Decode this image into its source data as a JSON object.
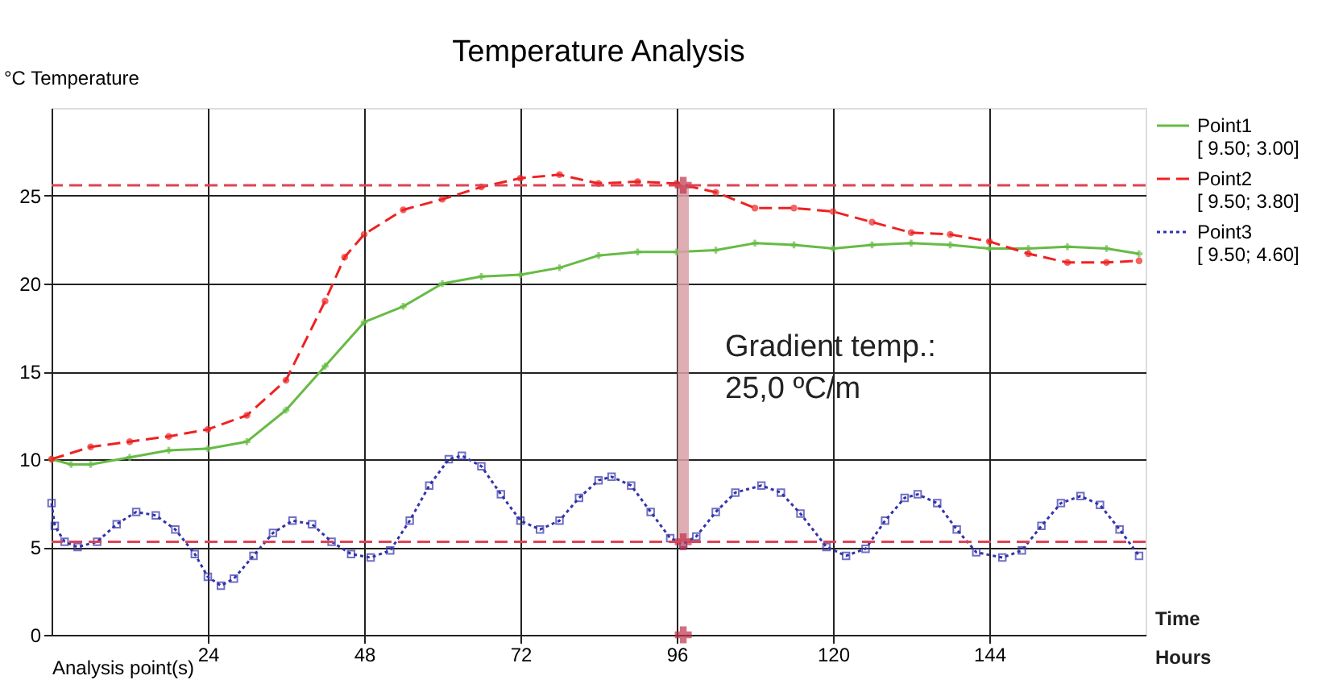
{
  "chart_data": {
    "type": "line",
    "title": "Temperature Analysis",
    "ylabel": "°C  Temperature",
    "xlabel": "Analysis point(s)",
    "xlim": [
      0,
      168
    ],
    "xticks": [
      24,
      48,
      72,
      96,
      120,
      144
    ],
    "ylim": [
      0,
      30
    ],
    "yticks": [
      0,
      5,
      10,
      15,
      20,
      25
    ],
    "grid": true,
    "legend": "top right",
    "series": [
      {
        "name": "Point1\n[ 9.50; 3.00]",
        "color": "#66bb44",
        "marker": "cross",
        "line_style": "solid",
        "x": [
          0,
          3,
          6,
          12,
          18,
          24,
          30,
          36,
          42,
          48,
          54,
          60,
          66,
          72,
          78,
          84,
          90,
          96,
          102,
          108,
          114,
          120,
          126,
          132,
          138,
          144,
          150,
          156,
          162,
          167
        ],
        "values": [
          10,
          9.7,
          9.7,
          10.1,
          10.5,
          10.6,
          11,
          12.8,
          15.3,
          17.8,
          18.7,
          20,
          20.4,
          20.5,
          20.9,
          21.6,
          21.8,
          21.8,
          21.9,
          22.3,
          22.2,
          22.0,
          22.2,
          22.3,
          22.2,
          22.0,
          22.0,
          22.1,
          22.0,
          21.7
        ]
      },
      {
        "name": "Point2\n[ 9.50; 3.80]",
        "color": "#ee2222",
        "marker": "circle",
        "line_style": "dashed",
        "x": [
          0,
          6,
          12,
          18,
          24,
          30,
          36,
          42,
          45,
          48,
          54,
          60,
          66,
          72,
          78,
          84,
          90,
          96,
          102,
          108,
          114,
          120,
          126,
          132,
          138,
          144,
          150,
          156,
          162,
          167
        ],
        "values": [
          10,
          10.7,
          11,
          11.3,
          11.7,
          12.5,
          14.5,
          19,
          21.5,
          22.8,
          24.2,
          24.8,
          25.5,
          26,
          26.2,
          25.7,
          25.8,
          25.7,
          25.2,
          24.3,
          24.3,
          24.1,
          23.5,
          22.9,
          22.8,
          22.4,
          21.7,
          21.2,
          21.2,
          21.3
        ]
      },
      {
        "name": "Point3\n[ 9.50; 4.60]",
        "color": "#3333aa",
        "marker": "square",
        "line_style": "dotted",
        "x": [
          0,
          0.5,
          2,
          4,
          7,
          10,
          13,
          16,
          19,
          22,
          24,
          26,
          28,
          31,
          34,
          37,
          40,
          43,
          46,
          49,
          52,
          55,
          58,
          61,
          63,
          66,
          69,
          72,
          75,
          78,
          81,
          84,
          86,
          89,
          92,
          95,
          97,
          99,
          102,
          105,
          109,
          112,
          115,
          119,
          122,
          125,
          128,
          131,
          133,
          136,
          139,
          142,
          146,
          149,
          152,
          155,
          158,
          161,
          164,
          167
        ],
        "values": [
          7.5,
          6.2,
          5.3,
          5.0,
          5.3,
          6.3,
          7.0,
          6.8,
          6.0,
          4.6,
          3.3,
          2.8,
          3.2,
          4.5,
          5.8,
          6.5,
          6.3,
          5.3,
          4.6,
          4.4,
          4.8,
          6.5,
          8.5,
          10.0,
          10.2,
          9.6,
          8.0,
          6.5,
          6.0,
          6.5,
          7.8,
          8.8,
          9.0,
          8.5,
          7.0,
          5.5,
          5.2,
          5.6,
          7.0,
          8.1,
          8.5,
          8.1,
          6.9,
          5.0,
          4.5,
          4.9,
          6.5,
          7.8,
          8.0,
          7.5,
          6.0,
          4.7,
          4.4,
          4.8,
          6.2,
          7.5,
          7.9,
          7.4,
          6.0,
          4.5
        ]
      },
      {
        "type": "line",
        "color": "#d9a0a8",
        "marker": "none",
        "line_style": "solid",
        "x": [
          97,
          97
        ],
        "values": [
          5.3,
          25.6
        ]
      },
      {
        "type": "scatter",
        "color": "#c0304a",
        "marker": "cross",
        "x": [
          97,
          97,
          97
        ],
        "values": [
          25.6,
          5.3,
          0
        ]
      }
    ],
    "ref_lines": [
      {
        "axis": "y",
        "value": 25.6,
        "color": "#dd4455",
        "line_style": "dashed"
      },
      {
        "axis": "y",
        "value": 5.3,
        "color": "#dd4455",
        "line_style": "dashed"
      }
    ],
    "annotations": [
      "Gradient temp.:\n25,0 ºC/m",
      "Time",
      "Hours"
    ]
  }
}
